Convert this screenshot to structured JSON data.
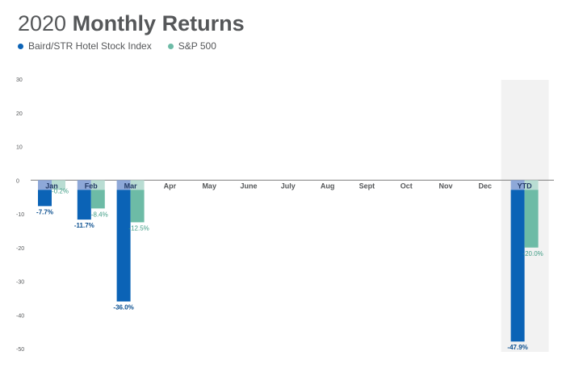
{
  "title_year": "2020",
  "title_rest": "Monthly Returns",
  "legend": [
    {
      "label": "Baird/STR Hotel Stock Index",
      "color": "#0b63b6"
    },
    {
      "label": "S&P 500",
      "color": "#6dbba6"
    }
  ],
  "colors": {
    "series_a": "#0b63b6",
    "series_b": "#6dbba6",
    "band_a": "#8ea8d8",
    "band_b": "#b9ddd3",
    "ytd_highlight": "#f2f2f2",
    "axis_text": "#555759"
  },
  "chart_data": {
    "type": "bar",
    "title": "2020 Monthly Returns",
    "categories": [
      "Jan",
      "Feb",
      "Mar",
      "Apr",
      "May",
      "June",
      "July",
      "Aug",
      "Sept",
      "Oct",
      "Nov",
      "Dec",
      "YTD"
    ],
    "series": [
      {
        "name": "Baird/STR Hotel Stock Index",
        "values": [
          -7.7,
          -11.7,
          -36.0,
          null,
          null,
          null,
          null,
          null,
          null,
          null,
          null,
          null,
          -47.9
        ]
      },
      {
        "name": "S&P 500",
        "values": [
          -0.2,
          -8.4,
          -12.5,
          null,
          null,
          null,
          null,
          null,
          null,
          null,
          null,
          null,
          -20.0
        ]
      }
    ],
    "data_labels": [
      [
        "-7.7%",
        "-11.7%",
        "-36.0%",
        null,
        null,
        null,
        null,
        null,
        null,
        null,
        null,
        null,
        "-47.9%"
      ],
      [
        "-0.2%",
        "-8.4%",
        "-12.5%",
        null,
        null,
        null,
        null,
        null,
        null,
        null,
        null,
        null,
        "-20.0%"
      ]
    ],
    "yticks": [
      30,
      20,
      10,
      0,
      -10,
      -20,
      -30,
      -40,
      -50
    ],
    "ylim": [
      -50,
      30
    ],
    "grid": false,
    "legend_position": "top-left",
    "highlight_category": "YTD"
  }
}
